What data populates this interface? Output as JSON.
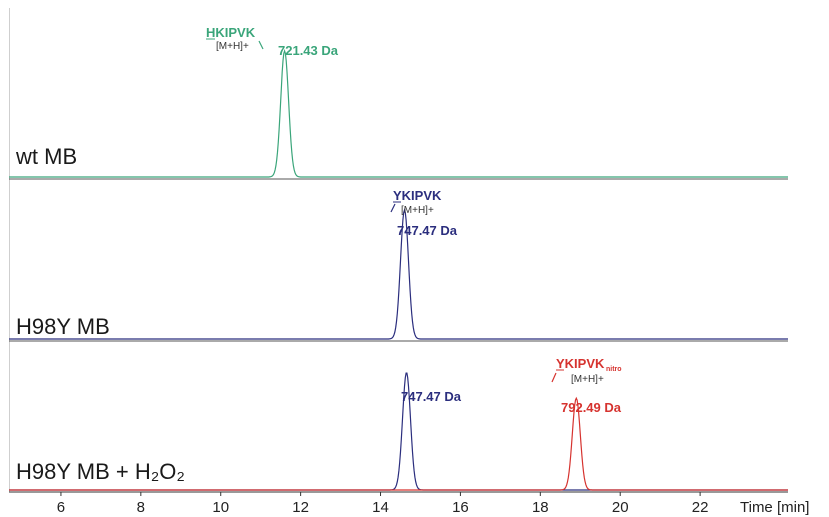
{
  "colors": {
    "wt": "#3aa57a",
    "h98y": "#2b2e7e",
    "nitro": "#d6332f",
    "axis": "#333333",
    "separator": "#555555"
  },
  "chart_data": {
    "type": "line",
    "x_label": "Time [min]",
    "x_range": [
      4.7,
      24.2
    ],
    "x_ticks": [
      6,
      8,
      10,
      12,
      14,
      16,
      18,
      20,
      22
    ],
    "x_tick_labels": [
      "6",
      "8",
      "10",
      "12",
      "14",
      "16",
      "18",
      "20",
      "22"
    ],
    "panels": [
      {
        "label": "wt MB",
        "peaks": [
          {
            "series": "wt",
            "x": 11.6,
            "height": 0.9,
            "peptide": "HKIPVK",
            "ion": "[M+H]+",
            "mass": "721.43 Da"
          }
        ]
      },
      {
        "label": "H98Y MB",
        "peaks": [
          {
            "series": "h98y",
            "x": 14.6,
            "height": 0.86,
            "peptide": "YKIPVK",
            "ion": "[M+H]+",
            "mass": "747.47 Da"
          }
        ]
      },
      {
        "label": "H98Y MB + H₂O₂",
        "peaks": [
          {
            "series": "h98y",
            "x": 14.65,
            "height": 0.87,
            "peptide": "",
            "ion": "",
            "mass": "747.47 Da"
          },
          {
            "series": "nitro",
            "x": 18.9,
            "height": 0.68,
            "peptide": "YKIPVK",
            "subscript": "nitro",
            "ion": "[M+H]+",
            "mass": "792.49 Da"
          }
        ]
      }
    ]
  },
  "labels": {
    "panel1": "wt MB",
    "panel2": "H98Y MB",
    "panel3": "H98Y MB + H₂O₂",
    "wt_peptide": "HKIPVK",
    "wt_ion": "[M+H]+",
    "wt_mass": "721.43 Da",
    "h98y_peptide": "YKIPVK",
    "h98y_ion": "[M+H]+",
    "h98y_mass": "747.47 Da",
    "h98y_mass_panel3": "747.47 Da",
    "nitro_peptide": "YKIPVK",
    "nitro_sub": "nitro",
    "nitro_ion": "[M+H]+",
    "nitro_mass": "792.49 Da",
    "x_axis_title": "Time [min]"
  }
}
